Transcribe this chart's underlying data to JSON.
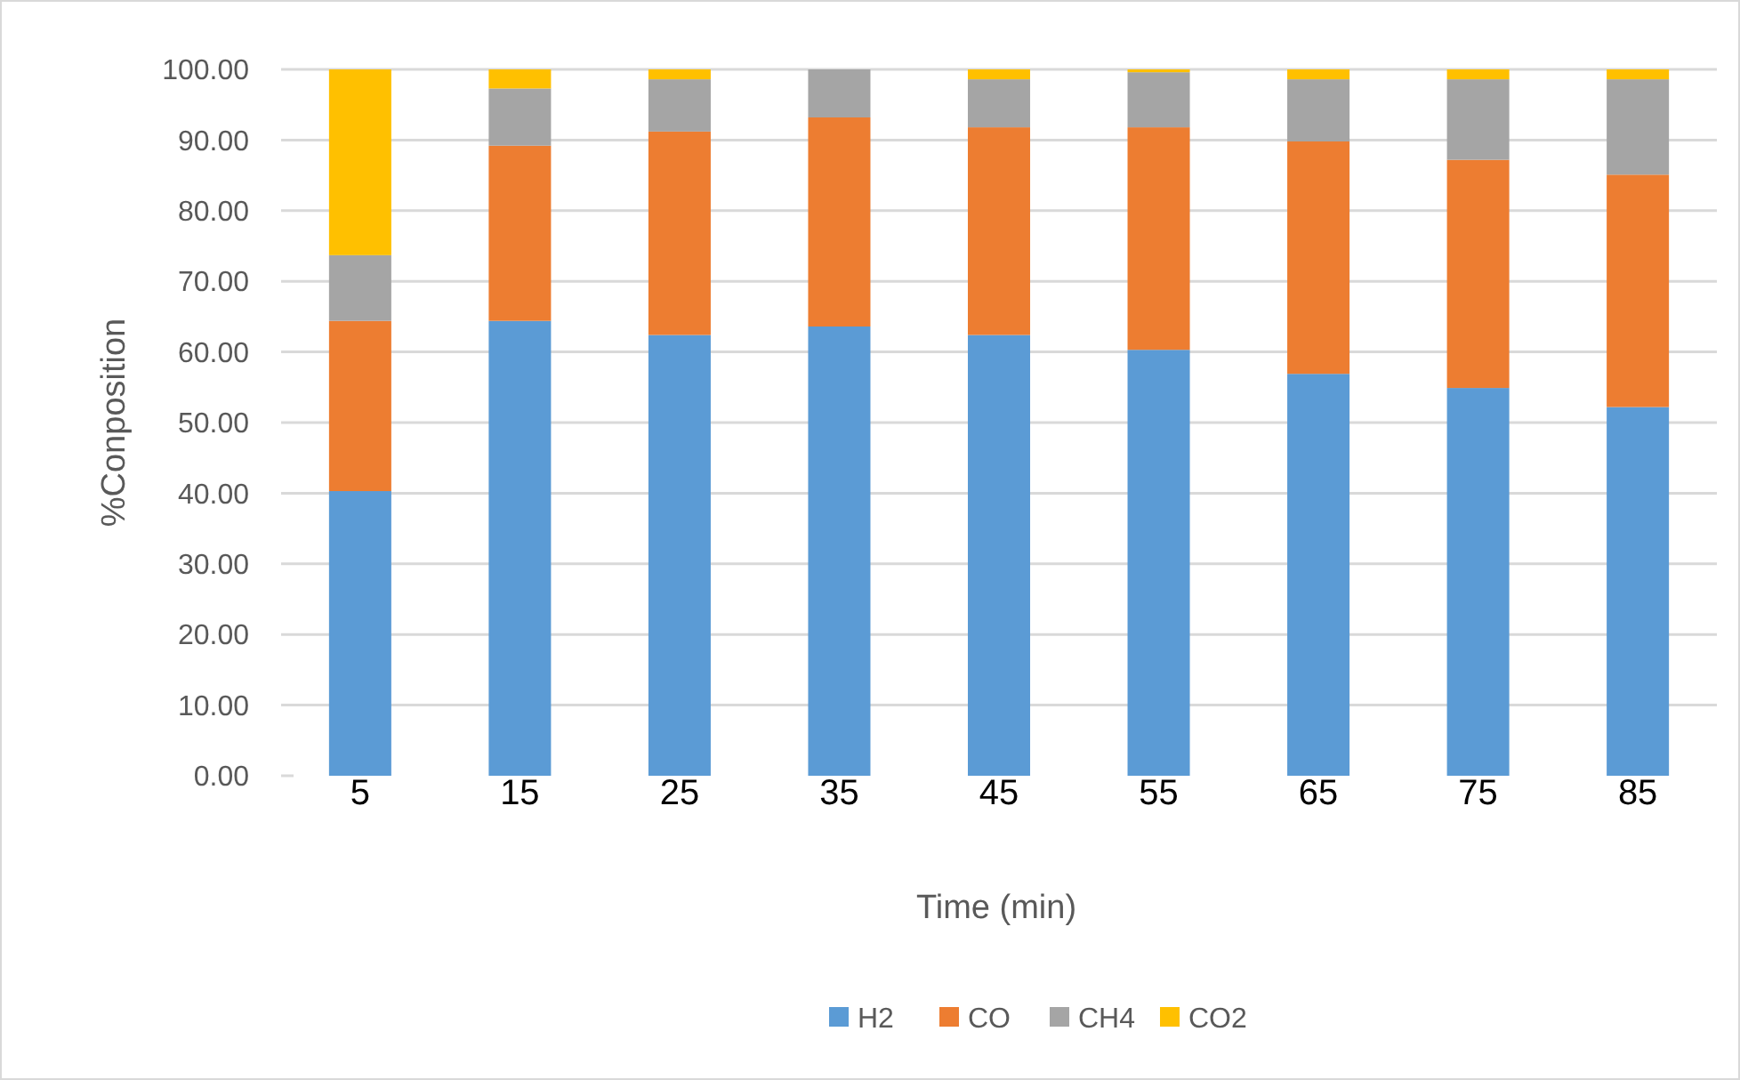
{
  "chart_data": {
    "type": "bar",
    "stacked": true,
    "xlabel": "Time (min)",
    "ylabel": "%Conposition",
    "categories": [
      "5",
      "15",
      "25",
      "35",
      "45",
      "55",
      "65",
      "75",
      "85"
    ],
    "series": [
      {
        "name": "H2",
        "color": "#5b9bd5",
        "values": [
          40.3,
          64.4,
          62.4,
          63.6,
          62.4,
          60.3,
          56.9,
          54.9,
          52.2
        ]
      },
      {
        "name": "CO",
        "color": "#ed7d31",
        "values": [
          24.1,
          24.8,
          28.8,
          29.6,
          29.4,
          31.5,
          32.9,
          32.3,
          32.9
        ]
      },
      {
        "name": "CH4",
        "color": "#a5a5a5",
        "values": [
          9.3,
          8.1,
          7.4,
          6.8,
          6.8,
          7.8,
          8.8,
          11.4,
          13.5
        ]
      },
      {
        "name": "CO2",
        "color": "#ffc000",
        "values": [
          26.3,
          2.7,
          1.4,
          0,
          1.4,
          0.4,
          1.4,
          1.4,
          1.4
        ]
      }
    ],
    "ylim": [
      0,
      100
    ],
    "yticks": [
      {
        "value": 0,
        "label": "0.00"
      },
      {
        "value": 10,
        "label": "10.00"
      },
      {
        "value": 20,
        "label": "20.00"
      },
      {
        "value": 30,
        "label": "30.00"
      },
      {
        "value": 40,
        "label": "40.00"
      },
      {
        "value": 50,
        "label": "50.00"
      },
      {
        "value": 60,
        "label": "60.00"
      },
      {
        "value": 70,
        "label": "70.00"
      },
      {
        "value": 80,
        "label": "80.00"
      },
      {
        "value": 90,
        "label": "90.00"
      },
      {
        "value": 100,
        "label": "100.00"
      }
    ],
    "grid": "y",
    "legend": "bottom"
  }
}
